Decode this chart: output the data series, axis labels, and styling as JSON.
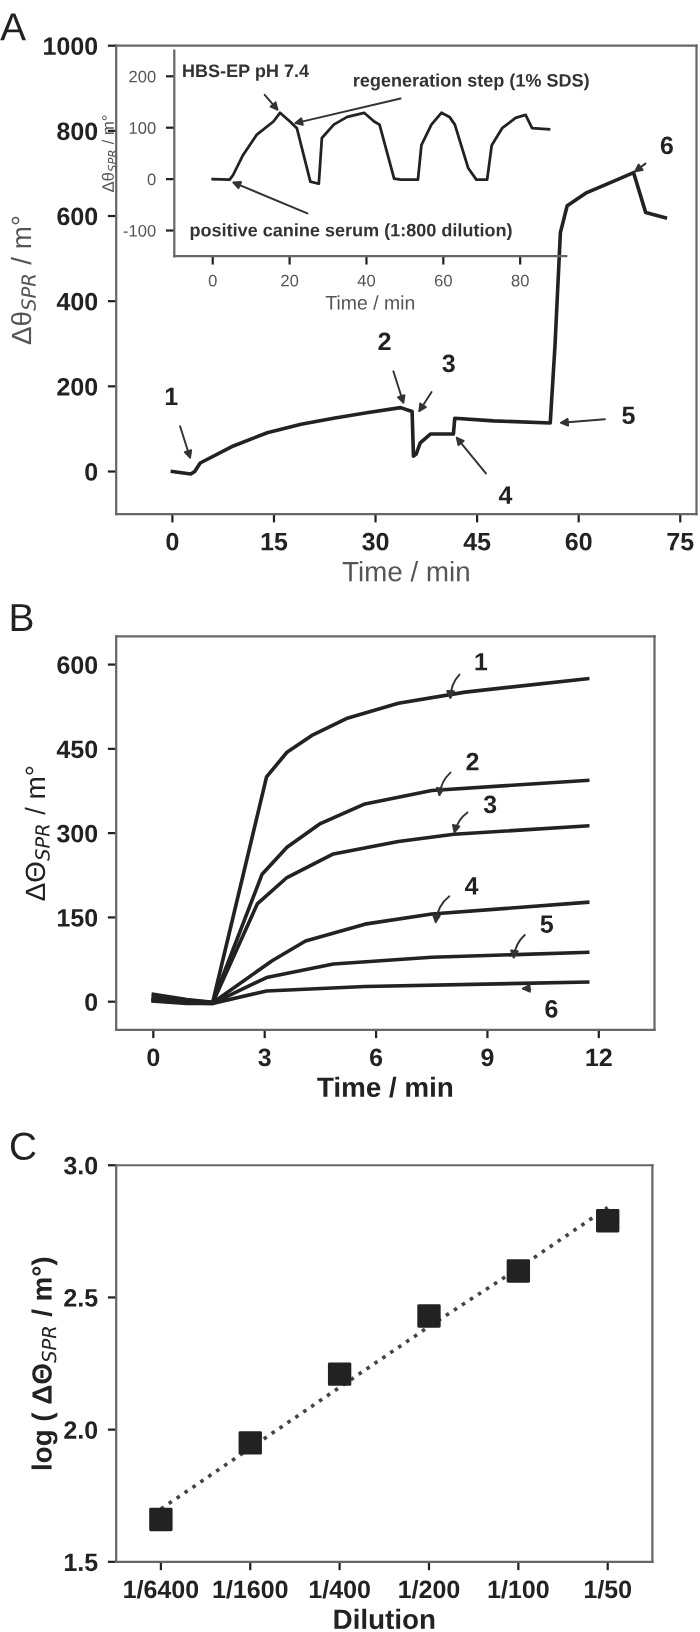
{
  "chart_data": [
    {
      "type": "line",
      "title": "A",
      "xlabel": "Time / min",
      "ylabel": "Δθ$_{SPR}$ / m°",
      "color": "#222222",
      "x": [
        0,
        2.7,
        3.3,
        4.1,
        9,
        14,
        19,
        23.8,
        28.7,
        33.7,
        35.4,
        35.6,
        36,
        36.6,
        38.1,
        41.5,
        41.7,
        47.4,
        55.8,
        56.5,
        57.3,
        58.3,
        61.2,
        65.2,
        68.1,
        69.9,
        72.8
      ],
      "values": [
        0,
        -6,
        0,
        20,
        60,
        91,
        111,
        125,
        138,
        150,
        141,
        36,
        41,
        67,
        88,
        88,
        125,
        119,
        114,
        295,
        561,
        624,
        655,
        682,
        702,
        608,
        596
      ],
      "xlim": [
        -8.3,
        77.4
      ],
      "ylim": [
        -100,
        1000
      ],
      "xticks": [
        0,
        15,
        30,
        45,
        60,
        75
      ],
      "yticks": [
        0,
        200,
        400,
        600,
        800,
        1000
      ],
      "annotations": [
        {
          "text": "1",
          "x": 2.7,
          "y": 28
        },
        {
          "text": "2",
          "x": 34.2,
          "y": 157
        },
        {
          "text": "3",
          "x": 36.3,
          "y": 138
        },
        {
          "text": "4",
          "x": 41.8,
          "y": 83
        },
        {
          "text": "5",
          "x": 57.1,
          "y": 114
        },
        {
          "text": "6",
          "x": 68.1,
          "y": 702
        }
      ]
    },
    {
      "type": "line",
      "xlabel": "Time / min",
      "ylabel": "Δθ$_{SPR}$ / m°",
      "color": "#222222",
      "x": [
        0,
        4.4,
        5.3,
        7.9,
        11.4,
        15.8,
        17.5,
        20.1,
        21.9,
        25.4,
        27.6,
        28.4,
        31.5,
        35,
        39.4,
        42,
        43.4,
        47.2,
        49,
        53.4,
        54.3,
        56.9,
        59.5,
        61.6,
        63,
        66.5,
        68.6,
        71.4,
        72.6,
        75.3,
        78.8,
        81.4,
        83.1,
        87.5
      ],
      "values": [
        0,
        -1,
        8,
        47,
        86,
        112,
        129,
        112,
        99,
        -5,
        -9,
        80,
        106,
        121,
        129,
        112,
        106,
        1,
        -1,
        -1,
        66,
        106,
        129,
        121,
        106,
        21,
        -1,
        -1,
        66,
        99,
        119,
        125,
        99,
        97
      ],
      "xlim": [
        -10,
        92
      ],
      "ylim": [
        -150,
        250
      ],
      "xticks": [
        0,
        20,
        40,
        60,
        80
      ],
      "yticks": [
        -100,
        0,
        100,
        200
      ],
      "annotations": [
        {
          "text": "HBS-EP pH 7.4",
          "x": 17.2,
          "y": 132
        },
        {
          "text": "regeneration step (1% SDS)",
          "x": 21,
          "y": 108
        },
        {
          "text": "positive canine serum (1:800 dilution)",
          "x": 4.9,
          "y": -5
        }
      ]
    },
    {
      "type": "line",
      "title": "B",
      "xlabel": "Time / min",
      "ylabel": "ΔΘ$_{SPR}$ / m°",
      "series": [
        {
          "color": "#222222",
          "x": [
            0,
            0.9,
            1.6,
            3.05,
            3.6,
            4.3,
            5.2,
            6.6,
            8.4,
            11.7
          ],
          "values": [
            13,
            4,
            -1,
            400,
            444,
            475,
            504,
            531,
            551,
            575
          ]
        },
        {
          "color": "#222222",
          "x": [
            0,
            0.9,
            1.6,
            2.93,
            3.6,
            4.5,
            5.7,
            7.5,
            11.7
          ],
          "values": [
            8,
            2,
            -1,
            227,
            275,
            317,
            352,
            376,
            394
          ]
        },
        {
          "color": "#222222",
          "x": [
            0,
            0.9,
            1.6,
            2.8,
            3.6,
            4.85,
            6.6,
            8.1,
            11.7
          ],
          "values": [
            5,
            0,
            -2,
            174,
            221,
            263,
            285,
            298,
            313
          ]
        },
        {
          "color": "#222222",
          "x": [
            0,
            0.9,
            1.6,
            3.2,
            4.1,
            5.7,
            7.5,
            11.7
          ],
          "values": [
            3,
            -1,
            -2,
            73,
            108,
            138,
            156,
            177
          ]
        },
        {
          "color": "#222222",
          "x": [
            0,
            0.9,
            1.6,
            3.05,
            4.85,
            7.5,
            11.7
          ],
          "values": [
            2,
            -2,
            -3,
            43,
            67,
            79,
            88
          ]
        },
        {
          "color": "#222222",
          "x": [
            0,
            0.9,
            1.6,
            3.05,
            5.7,
            11.7
          ],
          "values": [
            1,
            -3,
            -3,
            19,
            27,
            35
          ]
        }
      ],
      "xlim": [
        -1,
        13.5
      ],
      "ylim": [
        -50,
        650
      ],
      "xticks": [
        0,
        3,
        6,
        9,
        12
      ],
      "yticks": [
        0,
        150,
        300,
        450,
        600
      ],
      "annotations": [
        {
          "text": "1",
          "x": 8,
          "y": 537
        },
        {
          "text": "2",
          "x": 7.7,
          "y": 364
        },
        {
          "text": "3",
          "x": 8.1,
          "y": 298
        },
        {
          "text": "4",
          "x": 7.6,
          "y": 138
        },
        {
          "text": "5",
          "x": 9.7,
          "y": 75
        },
        {
          "text": "6",
          "x": 9.9,
          "y": 23
        }
      ]
    },
    {
      "type": "scatter",
      "title": "C",
      "xlabel": "Dilution",
      "ylabel": "log ( ΔΘ$_{SPR}$ / m°)",
      "categories": [
        "1/6400",
        "1/1600",
        "1/400",
        "1/200",
        "1/100",
        "1/50"
      ],
      "series": [
        {
          "type": "scatter",
          "marker": "square",
          "color": "#222222",
          "values": [
            1.66,
            1.95,
            2.21,
            2.43,
            2.6,
            2.79
          ]
        },
        {
          "type": "line",
          "line_style": "dotted",
          "color": "#444444",
          "values": [
            1.7,
            1.93,
            2.16,
            2.39,
            2.61,
            2.84
          ]
        }
      ],
      "ylim": [
        1.5,
        3.0
      ],
      "yticks": [
        1.5,
        {
          "value": 2,
          "label": "2.0"
        },
        2.5,
        {
          "value": 3,
          "label": "3.0"
        }
      ]
    }
  ]
}
